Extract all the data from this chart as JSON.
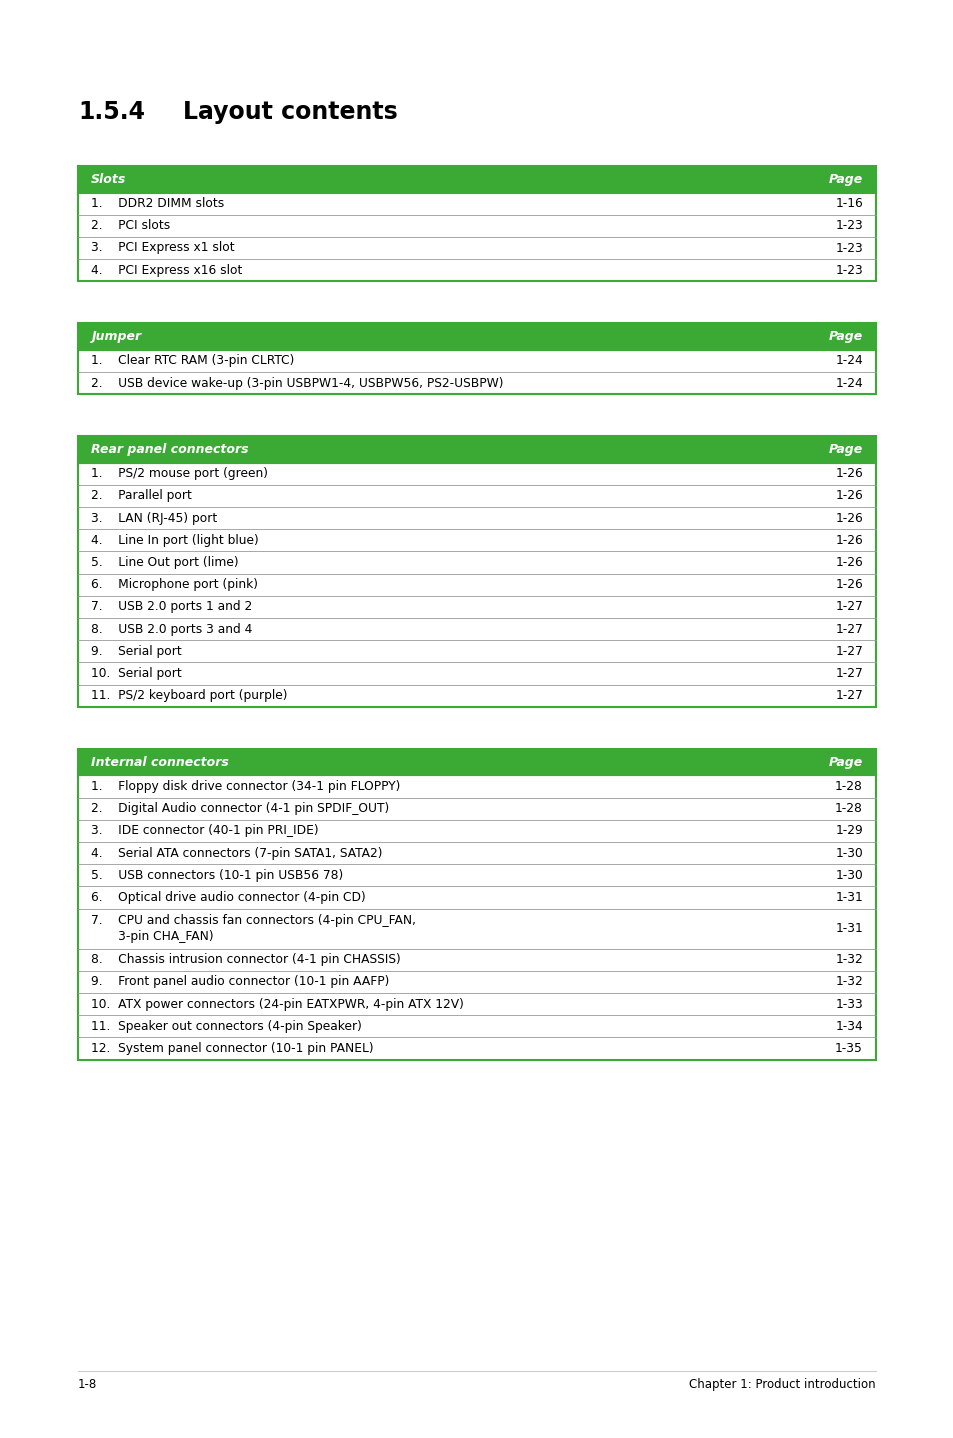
{
  "title_num": "1.5.4",
  "title_text": "Layout contents",
  "header_bg": "#3aaa35",
  "header_text_color": "#ffffff",
  "border_color": "#3aaa35",
  "row_text_color": "#000000",
  "bg_color": "#ffffff",
  "tables": [
    {
      "header": [
        "Slots",
        "Page"
      ],
      "rows": [
        [
          "1.    DDR2 DIMM slots",
          "1-16"
        ],
        [
          "2.    PCI slots",
          "1-23"
        ],
        [
          "3.    PCI Express x1 slot",
          "1-23"
        ],
        [
          "4.    PCI Express x16 slot",
          "1-23"
        ]
      ],
      "double_rows": []
    },
    {
      "header": [
        "Jumper",
        "Page"
      ],
      "rows": [
        [
          "1.    Clear RTC RAM (3-pin CLRTC)",
          "1-24"
        ],
        [
          "2.    USB device wake-up (3-pin USBPW1-4, USBPW56, PS2-USBPW)",
          "1-24"
        ]
      ],
      "double_rows": []
    },
    {
      "header": [
        "Rear panel connectors",
        "Page"
      ],
      "rows": [
        [
          "1.    PS/2 mouse port (green)",
          "1-26"
        ],
        [
          "2.    Parallel port",
          "1-26"
        ],
        [
          "3.    LAN (RJ-45) port",
          "1-26"
        ],
        [
          "4.    Line In port (light blue)",
          "1-26"
        ],
        [
          "5.    Line Out port (lime)",
          "1-26"
        ],
        [
          "6.    Microphone port (pink)",
          "1-26"
        ],
        [
          "7.    USB 2.0 ports 1 and 2",
          "1-27"
        ],
        [
          "8.    USB 2.0 ports 3 and 4",
          "1-27"
        ],
        [
          "9.    Serial port",
          "1-27"
        ],
        [
          "10.  Serial port",
          "1-27"
        ],
        [
          "11.  PS/2 keyboard port (purple)",
          "1-27"
        ]
      ],
      "double_rows": []
    },
    {
      "header": [
        "Internal connectors",
        "Page"
      ],
      "rows": [
        [
          "1.    Floppy disk drive connector (34-1 pin FLOPPY)",
          "1-28"
        ],
        [
          "2.    Digital Audio connector (4-1 pin SPDIF_OUT)",
          "1-28"
        ],
        [
          "3.    IDE connector (40-1 pin PRI_IDE)",
          "1-29"
        ],
        [
          "4.    Serial ATA connectors (7-pin SATA1, SATA2)",
          "1-30"
        ],
        [
          "5.    USB connectors (10-1 pin USB56 78)",
          "1-30"
        ],
        [
          "6.    Optical drive audio connector (4-pin CD)",
          "1-31"
        ],
        [
          "7.    CPU and chassis fan connectors (4-pin CPU_FAN,\n       3-pin CHA_FAN)",
          "1-31"
        ],
        [
          "8.    Chassis intrusion connector (4-1 pin CHASSIS)",
          "1-32"
        ],
        [
          "9.    Front panel audio connector (10-1 pin AAFP)",
          "1-32"
        ],
        [
          "10.  ATX power connectors (24-pin EATXPWR, 4-pin ATX 12V)",
          "1-33"
        ],
        [
          "11.  Speaker out connectors (4-pin Speaker)",
          "1-34"
        ],
        [
          "12.  System panel connector (10-1 pin PANEL)",
          "1-35"
        ]
      ],
      "double_rows": [
        6
      ]
    }
  ],
  "footer_left": "1-8",
  "footer_right": "Chapter 1: Product introduction"
}
